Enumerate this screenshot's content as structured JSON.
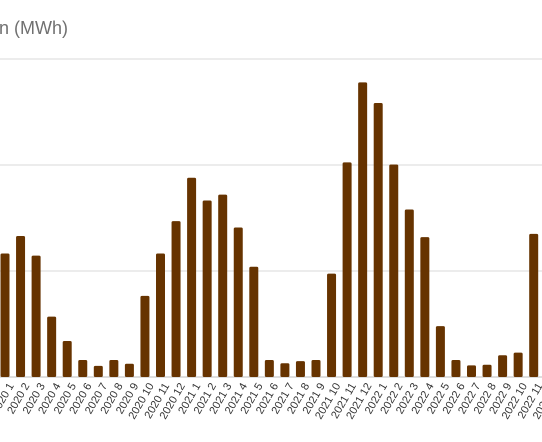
{
  "chart_data": {
    "type": "bar",
    "title": "tion (MWh)",
    "xlabel": "",
    "ylabel": "",
    "ylim": [
      0,
      3000
    ],
    "grid": true,
    "legend": "none",
    "bar_color": "#663300",
    "categories": [
      "2020 1",
      "2020 2",
      "2020 3",
      "2020 4",
      "2020 5",
      "2020 6",
      "2020 7",
      "2020 8",
      "2020 9",
      "2020 10",
      "2020 11",
      "2020 12",
      "2021 1",
      "2021 2",
      "2021 3",
      "2021 4",
      "2021 5",
      "2021 6",
      "2021 7",
      "2021 8",
      "2021 9",
      "2021 10",
      "2021 11",
      "2021 12",
      "2022 1",
      "2022 2",
      "2022 3",
      "2022 4",
      "2022 5",
      "2022 6",
      "2022 7",
      "2022 8",
      "2022 9",
      "2022 10",
      "2022 11",
      "2022 12"
    ],
    "values": [
      1165,
      1330,
      1145,
      570,
      340,
      160,
      105,
      160,
      125,
      765,
      1165,
      1470,
      1880,
      1665,
      1720,
      1410,
      1040,
      160,
      130,
      150,
      160,
      975,
      2025,
      2780,
      2585,
      2005,
      1580,
      1320,
      480,
      160,
      110,
      115,
      205,
      230,
      1350,
      2200
    ]
  }
}
